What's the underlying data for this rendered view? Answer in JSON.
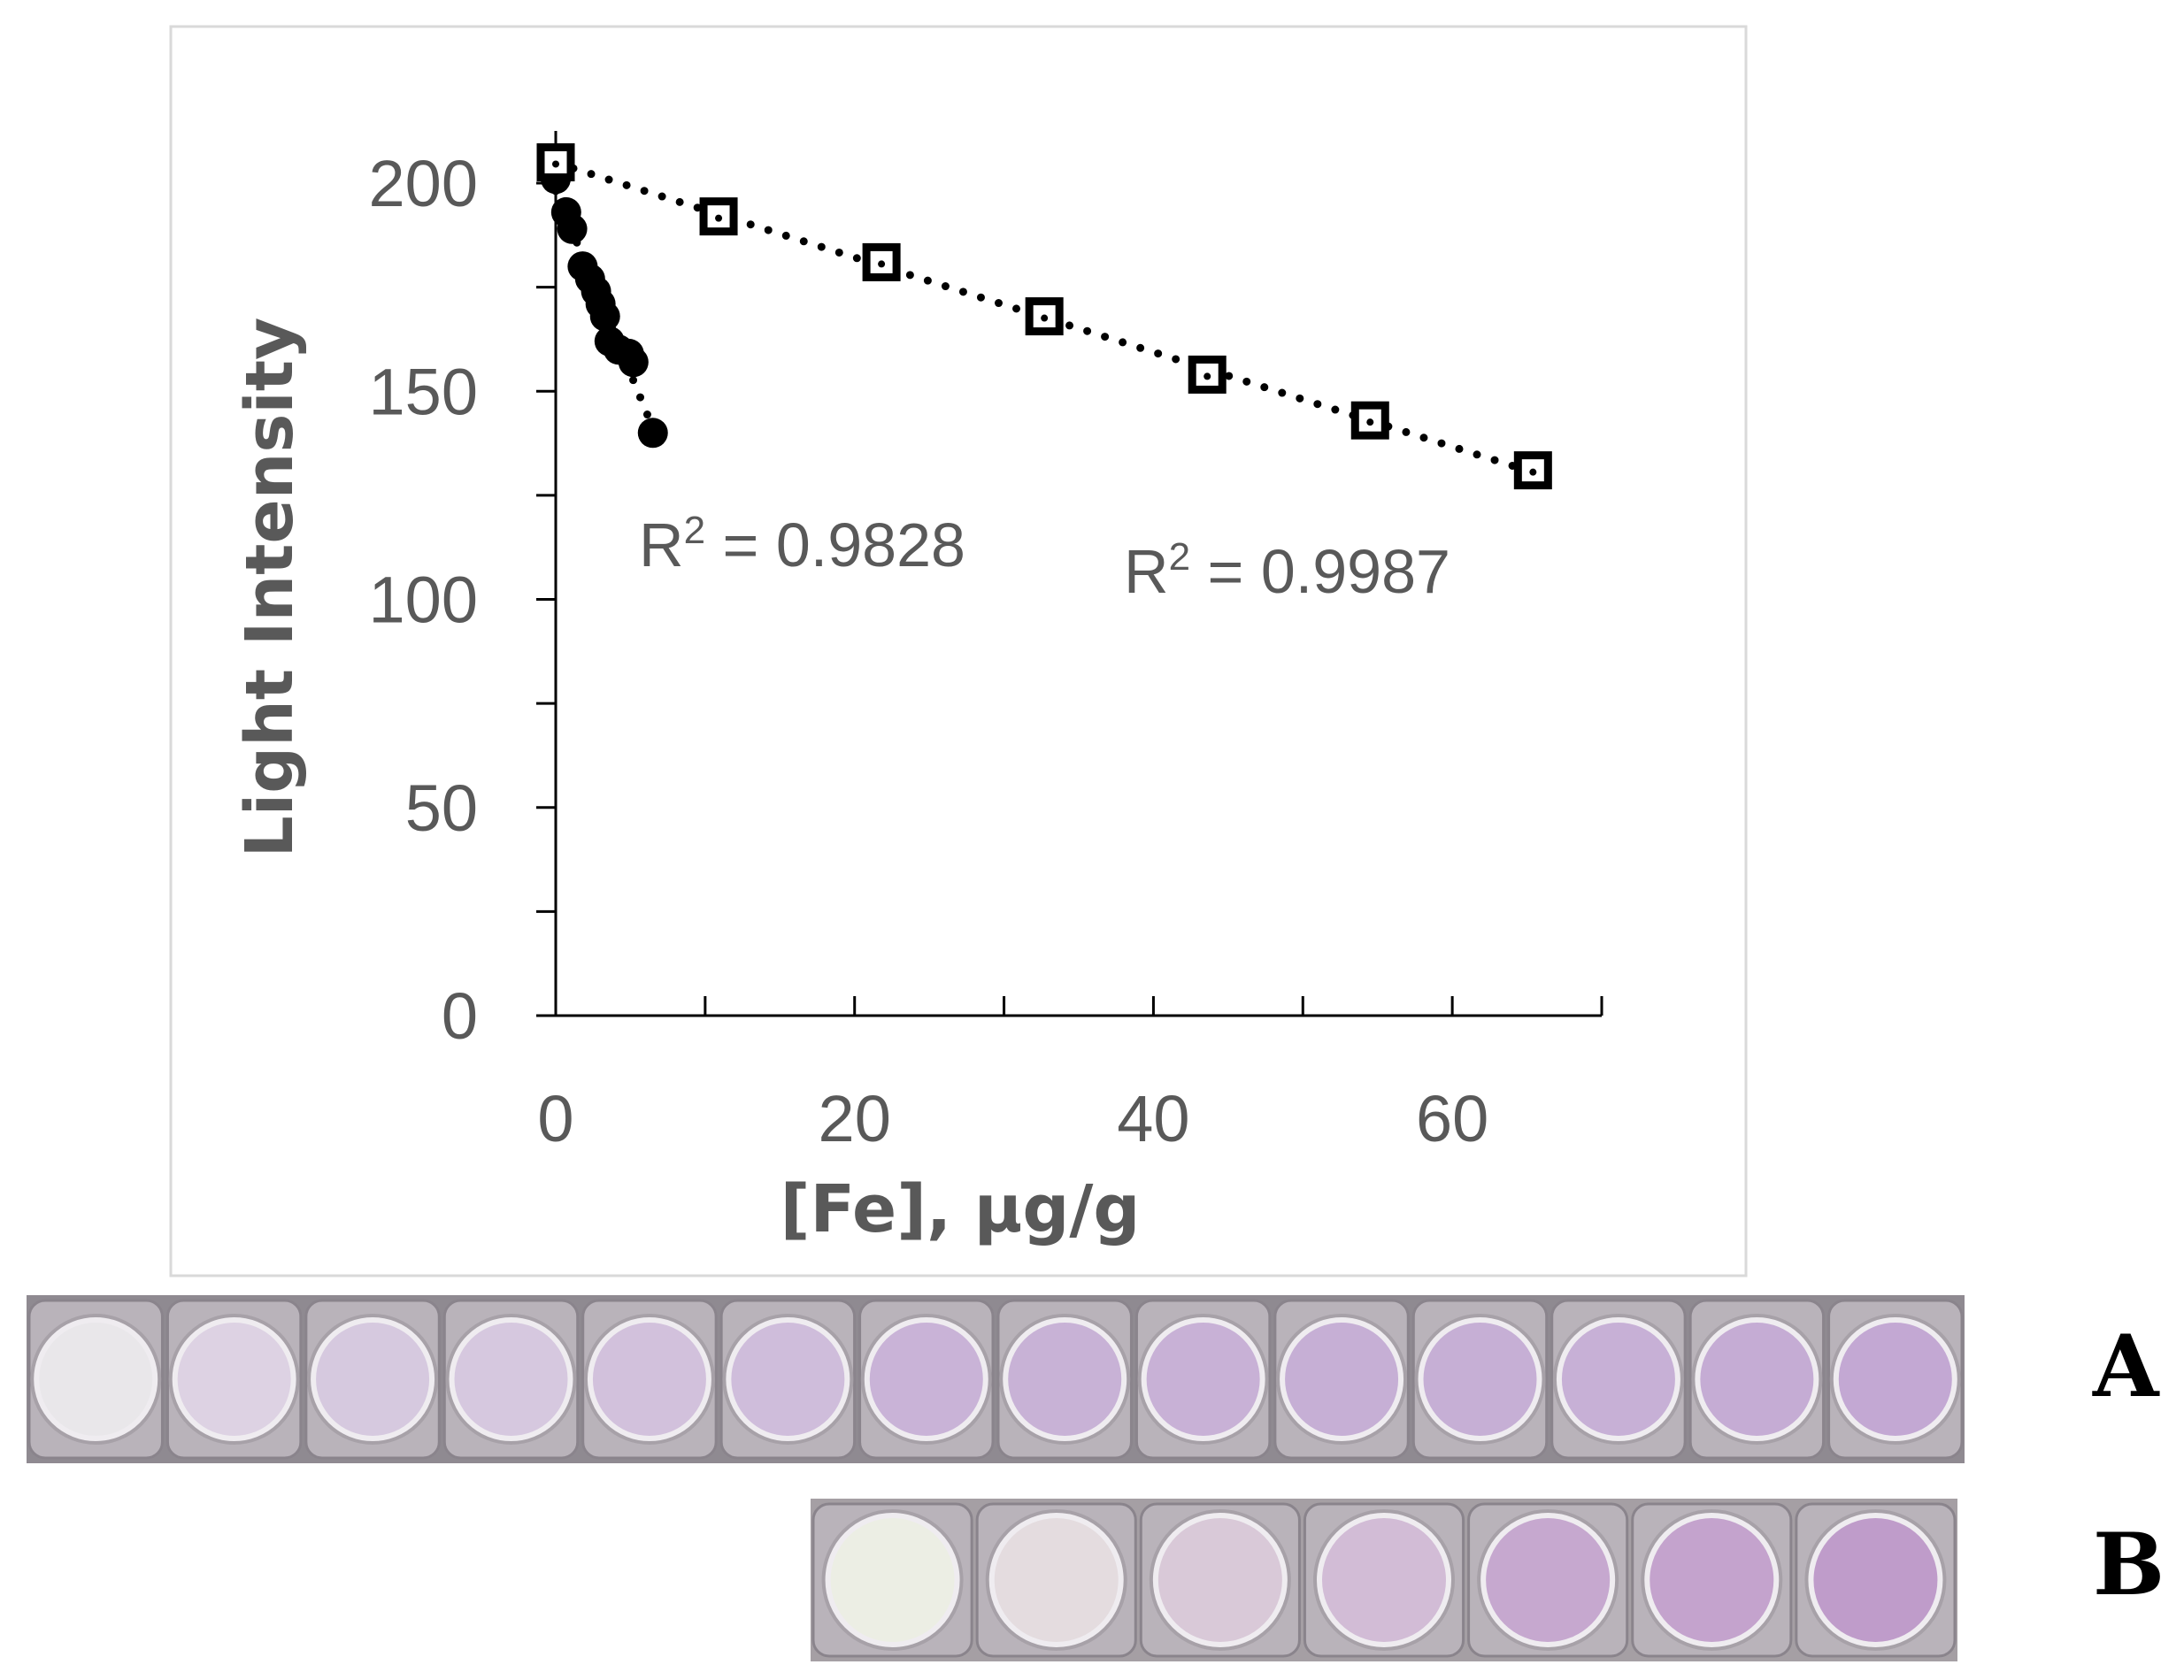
{
  "chart_data": {
    "type": "scatter",
    "xlabel": "[Fe], µg/g",
    "ylabel": "Light Intensity",
    "xlim": [
      0,
      70
    ],
    "ylim": [
      0,
      200
    ],
    "x_ticks": [
      0,
      20,
      40,
      60
    ],
    "x_minor_step": 10,
    "y_ticks": [
      0,
      50,
      100,
      150,
      200
    ],
    "y_minor_step": 25,
    "grid": false,
    "series": [
      {
        "marker": "filled-circle",
        "trendline": "dotted-linear",
        "r2_label": "R² = 0.9828",
        "x": [
          0.0,
          0.7,
          1.1,
          1.8,
          2.3,
          2.7,
          3.0,
          3.3,
          3.6,
          4.2,
          4.9,
          5.2,
          6.5
        ],
        "y": [
          201,
          193,
          189,
          180,
          177,
          174,
          171,
          168,
          162,
          160,
          159,
          157,
          140
        ]
      },
      {
        "marker": "open-square-with-dot",
        "trendline": "dotted-linear",
        "r2_label": "R² = 0.9987",
        "x": [
          0.0,
          10.9,
          21.8,
          32.7,
          43.6,
          54.5,
          65.4
        ],
        "y": [
          205,
          192,
          181,
          168,
          154,
          143,
          131
        ]
      }
    ]
  },
  "panels": [
    {
      "label": "A",
      "wells": 14,
      "well_colors": [
        "#e9e7ea",
        "#ddd2e3",
        "#d6c9df",
        "#d6c8df",
        "#d2c1dc",
        "#cfbddb",
        "#c9b3d7",
        "#c8b2d6",
        "#c8b1d6",
        "#c6afd5",
        "#c6afd5",
        "#c7b0d6",
        "#c5acd4",
        "#c3a8d3"
      ]
    },
    {
      "label": "B",
      "wells": 7,
      "well_colors": [
        "#eceee4",
        "#e4dcdf",
        "#d9c9d8",
        "#d2bcd6",
        "#c6a8cf",
        "#c4a3cd",
        "#bf9cca"
      ]
    }
  ],
  "colors": {
    "axis": "#000000",
    "text": "#595959",
    "frame": "#d9d9d9"
  }
}
